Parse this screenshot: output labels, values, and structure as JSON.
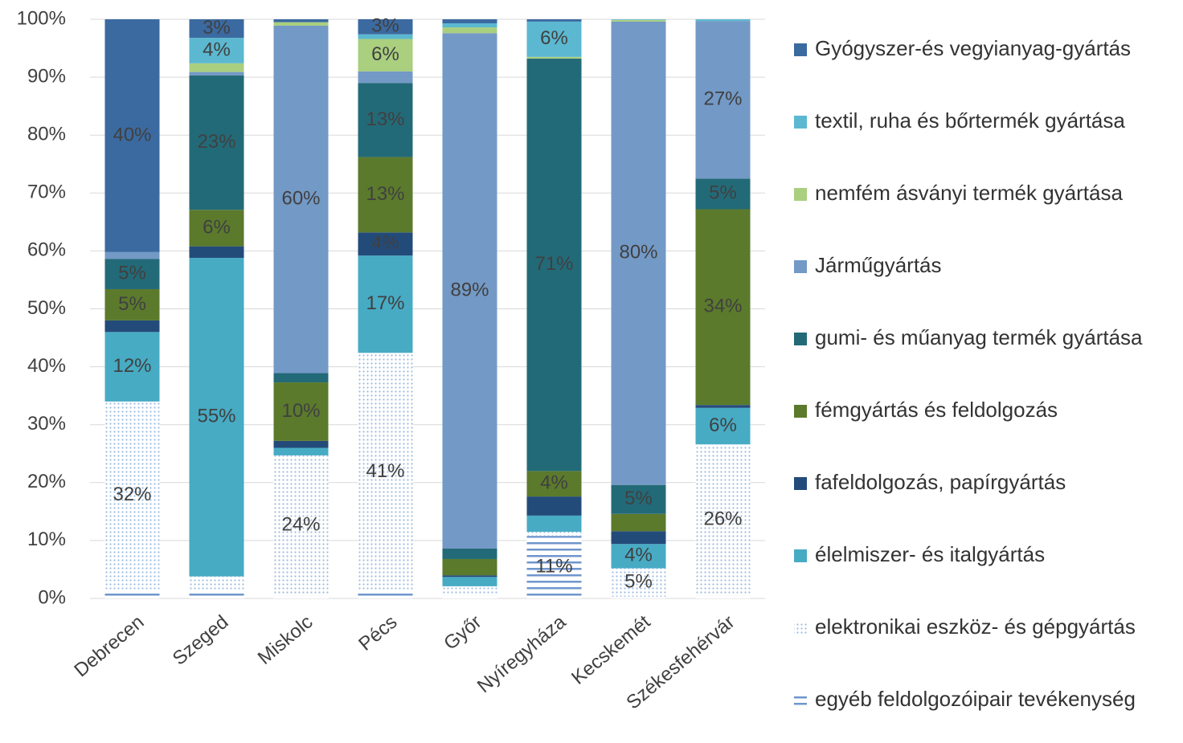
{
  "chart_data": {
    "type": "stacked_bar",
    "categories": [
      "Debrecen",
      "Szeged",
      "Miskolc",
      "Pécs",
      "Győr",
      "Nyíregyháza",
      "Kecskemét",
      "Székesfehérvár"
    ],
    "series": [
      {
        "name": "egyéb feldolgozóipair tevékenység",
        "color": "#6f96cc",
        "pattern": "stripes",
        "values": [
          1.6,
          1.5,
          0.5,
          1.2,
          0.5,
          10.8,
          0.3,
          0.5
        ],
        "value_labels": [
          null,
          null,
          null,
          null,
          null,
          "11%",
          null,
          null
        ]
      },
      {
        "name": "elektronikai eszköz- és gépgyártás",
        "color": "#9dbde0",
        "pattern": "dots",
        "values": [
          32.4,
          2.3,
          24.2,
          41.2,
          1.6,
          0.7,
          4.9,
          26.1
        ],
        "value_labels": [
          "32%",
          null,
          "24%",
          "41%",
          null,
          null,
          "5%",
          "26%"
        ]
      },
      {
        "name": "élelmiszer- és italgyártás",
        "color": "#47abc4",
        "values": [
          12,
          55,
          1.3,
          16.8,
          1.6,
          2.8,
          4.2,
          6.3
        ],
        "value_labels": [
          "12%",
          "55%",
          null,
          "17%",
          null,
          null,
          "4%",
          "6%"
        ]
      },
      {
        "name": "fafeldolgozás, papírgyártás",
        "color": "#234b7a",
        "values": [
          2,
          2,
          1.2,
          4,
          0.3,
          3.3,
          2.2,
          0.5
        ],
        "value_labels": [
          null,
          null,
          null,
          "4%",
          null,
          null,
          null,
          null
        ]
      },
      {
        "name": "fémgyártás és feldolgozás",
        "color": "#5b7a2c",
        "values": [
          5.4,
          6.3,
          10.1,
          13,
          2.8,
          4.4,
          3,
          33.8
        ],
        "value_labels": [
          "5%",
          "6%",
          "10%",
          "13%",
          null,
          "4%",
          null,
          "34%"
        ]
      },
      {
        "name": "gumi- és műanyag termék gyártása",
        "color": "#236a78",
        "values": [
          5.2,
          23.2,
          1.6,
          12.8,
          1.8,
          71.2,
          5,
          5.3
        ],
        "value_labels": [
          "5%",
          "23%",
          null,
          "13%",
          null,
          "71%",
          "5%",
          "5%"
        ]
      },
      {
        "name": "Járműgyártás",
        "color": "#7399c6",
        "values": [
          1.2,
          0.6,
          60,
          2,
          89,
          0,
          80,
          27.2
        ],
        "value_labels": [
          null,
          null,
          "60%",
          null,
          "89%",
          null,
          "80%",
          "27%"
        ]
      },
      {
        "name": "nemfém ásványi termék gyártása",
        "color": "#a9cf7f",
        "values": [
          0,
          1.5,
          0.6,
          5.6,
          1,
          0.3,
          0.3,
          0
        ],
        "value_labels": [
          null,
          null,
          null,
          "6%",
          null,
          null,
          null,
          null
        ]
      },
      {
        "name": "textil, ruha és bőrtermék gyártása",
        "color": "#5bb8d0",
        "values": [
          0,
          4.4,
          0,
          0.8,
          0.7,
          6.1,
          0.1,
          0.3
        ],
        "value_labels": [
          null,
          "4%",
          null,
          null,
          null,
          "6%",
          null,
          null
        ]
      },
      {
        "name": "Gyógyszer-és vegyianyag-gyártás",
        "color": "#3b6aa0",
        "values": [
          40.2,
          3.2,
          0.5,
          2.6,
          0.7,
          0.4,
          0,
          0
        ],
        "value_labels": [
          "40%",
          "3%",
          null,
          "3%",
          null,
          null,
          null,
          null
        ]
      }
    ],
    "ylim": [
      0,
      100
    ],
    "yticks": [
      {
        "value": 0,
        "label": "0%"
      },
      {
        "value": 10,
        "label": "10%"
      },
      {
        "value": 20,
        "label": "20%"
      },
      {
        "value": 30,
        "label": "30%"
      },
      {
        "value": 40,
        "label": "40%"
      },
      {
        "value": 50,
        "label": "50%"
      },
      {
        "value": 60,
        "label": "60%"
      },
      {
        "value": 70,
        "label": "70%"
      },
      {
        "value": 80,
        "label": "80%"
      },
      {
        "value": 90,
        "label": "90%"
      },
      {
        "value": 100,
        "label": "100%"
      }
    ],
    "grid": true,
    "legend": "right"
  }
}
